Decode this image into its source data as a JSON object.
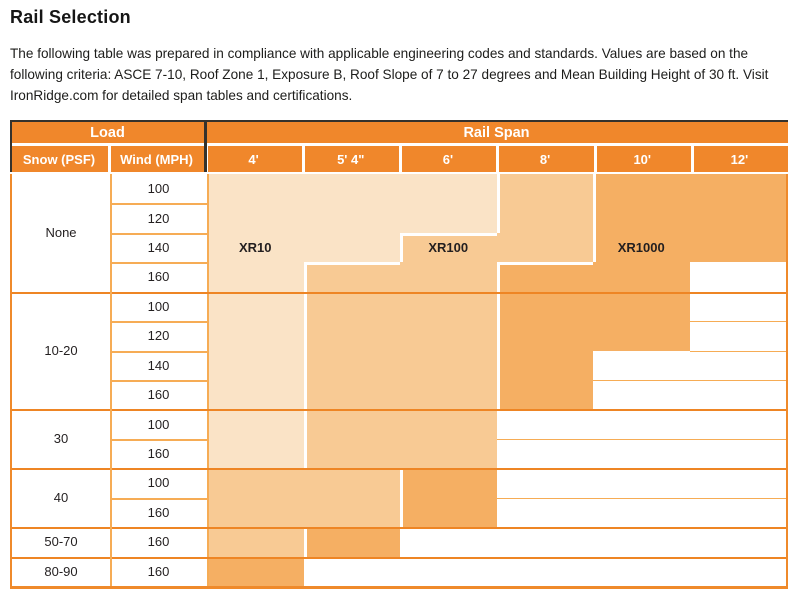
{
  "page": {
    "title": "Rail Selection",
    "intro": "The following table was prepared in compliance with applicable engineering codes and standards. Values are based on the following criteria: ASCE 7-10, Roof Zone 1, Exposure B, Roof Slope of 7 to 27 degrees and Mean Building Height of 30 ft. Visit IronRidge.com for detailed span tables and certifications."
  },
  "table": {
    "header": {
      "load": "Load",
      "rail_span": "Rail Span",
      "snow": "Snow (PSF)",
      "wind": "Wind (MPH)",
      "spans": [
        "4'",
        "5' 4\"",
        "6'",
        "8'",
        "10'",
        "12'"
      ]
    },
    "legend": {
      "L": "XR10",
      "M": "XR100",
      "D": "XR1000",
      "W": "no rail"
    },
    "rail_labels": {
      "row_index": 2,
      "placements": [
        {
          "col": 0,
          "text": "XR10"
        },
        {
          "col": 2,
          "text": "XR100"
        },
        {
          "col": 4,
          "text": "XR1000"
        }
      ]
    },
    "groups": [
      {
        "snow": "None",
        "rows": [
          {
            "wind": "100",
            "cells": "LLLMDD"
          },
          {
            "wind": "120",
            "cells": "LLLMDD"
          },
          {
            "wind": "140",
            "cells": "LLMMDD"
          },
          {
            "wind": "160",
            "cells": "LMMDDW"
          }
        ]
      },
      {
        "snow": "10-20",
        "rows": [
          {
            "wind": "100",
            "cells": "LMMDDW"
          },
          {
            "wind": "120",
            "cells": "LMMDDW"
          },
          {
            "wind": "140",
            "cells": "LMMDWW"
          },
          {
            "wind": "160",
            "cells": "LMMDWW"
          }
        ]
      },
      {
        "snow": "30",
        "rows": [
          {
            "wind": "100",
            "cells": "LMMWWW"
          },
          {
            "wind": "160",
            "cells": "LMMWWW"
          }
        ]
      },
      {
        "snow": "40",
        "rows": [
          {
            "wind": "100",
            "cells": "MMDWWW"
          },
          {
            "wind": "160",
            "cells": "MMDWWW"
          }
        ]
      },
      {
        "snow": "50-70",
        "rows": [
          {
            "wind": "160",
            "cells": "MDWWWW"
          }
        ]
      },
      {
        "snow": "80-90",
        "rows": [
          {
            "wind": "160",
            "cells": "DWWWWW"
          }
        ]
      }
    ],
    "colors": {
      "header": "#F0872B",
      "xr10": "#FAE3C6",
      "xr100": "#F8CA94",
      "xr1000": "#F5AF63",
      "white": "#FFFFFF",
      "row_line": "#F6AC55",
      "group_line": "#EE8524",
      "outline": "#EF8A2B",
      "black_line": "#35322D",
      "text": "#231F20"
    }
  }
}
